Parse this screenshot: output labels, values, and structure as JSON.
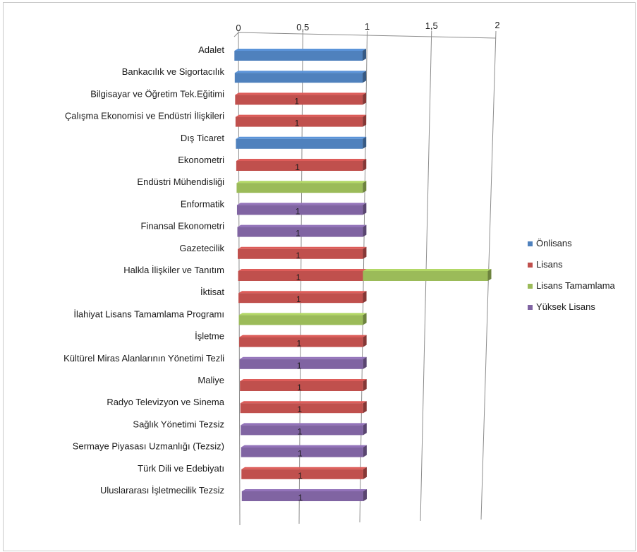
{
  "chart_data": {
    "type": "bar",
    "orientation": "horizontal",
    "stacked": true,
    "style": "3d",
    "xlim": [
      0,
      2
    ],
    "x_ticks": [
      "0",
      "0,5",
      "1",
      "1,5",
      "2"
    ],
    "x_tick_values": [
      0,
      0.5,
      1,
      1.5,
      2
    ],
    "grid": true,
    "legend_position": "right",
    "categories": [
      "Adalet",
      "Bankacılık ve Sigortacılık",
      "Bilgisayar ve Öğretim Tek.Eğitimi",
      "Çalışma Ekonomisi ve Endüstri İlişkileri",
      "Dış Ticaret",
      "Ekonometri",
      "Endüstri Mühendisliği",
      "Enformatik",
      "Finansal Ekonometri",
      "Gazetecilik",
      "Halkla İlişkiler ve Tanıtım",
      "İktisat",
      "İlahiyat Lisans Tamamlama Programı",
      "İşletme",
      "Kültürel Miras Alanlarının Yönetimi Tezli",
      "Maliye",
      "Radyo Televizyon ve Sinema",
      "Sağlık Yönetimi Tezsiz",
      "Sermaye Piyasası Uzmanlığı (Tezsiz)",
      "Türk Dili ve Edebiyatı",
      "Uluslararası İşletmecilik Tezsiz"
    ],
    "series": [
      {
        "name": "Önlisans",
        "color": "#4f81bd",
        "values": [
          1,
          1,
          0,
          0,
          1,
          0,
          0,
          0,
          0,
          0,
          0,
          0,
          0,
          0,
          0,
          0,
          0,
          0,
          0,
          0,
          0
        ]
      },
      {
        "name": "Lisans",
        "color": "#c0504d",
        "values": [
          0,
          0,
          1,
          1,
          0,
          1,
          0,
          0,
          0,
          1,
          1,
          1,
          0,
          1,
          0,
          1,
          1,
          0,
          0,
          1,
          0
        ]
      },
      {
        "name": "Lisans Tamamlama",
        "color": "#9bbb59",
        "values": [
          0,
          0,
          0,
          0,
          0,
          0,
          1,
          0,
          0,
          0,
          1,
          0,
          1,
          0,
          0,
          0,
          0,
          0,
          0,
          0,
          0
        ]
      },
      {
        "name": "Yüksek Lisans",
        "color": "#8064a2",
        "values": [
          0,
          0,
          0,
          0,
          0,
          0,
          0,
          1,
          1,
          0,
          0,
          0,
          0,
          0,
          1,
          0,
          0,
          1,
          1,
          0,
          1
        ]
      }
    ],
    "data_labels": [
      "",
      "",
      "1",
      "1",
      "",
      "1",
      "",
      "1",
      "1",
      "1",
      "1",
      "1",
      "",
      "1",
      "1",
      "1",
      "1",
      "1",
      "1",
      "1",
      "1"
    ]
  }
}
